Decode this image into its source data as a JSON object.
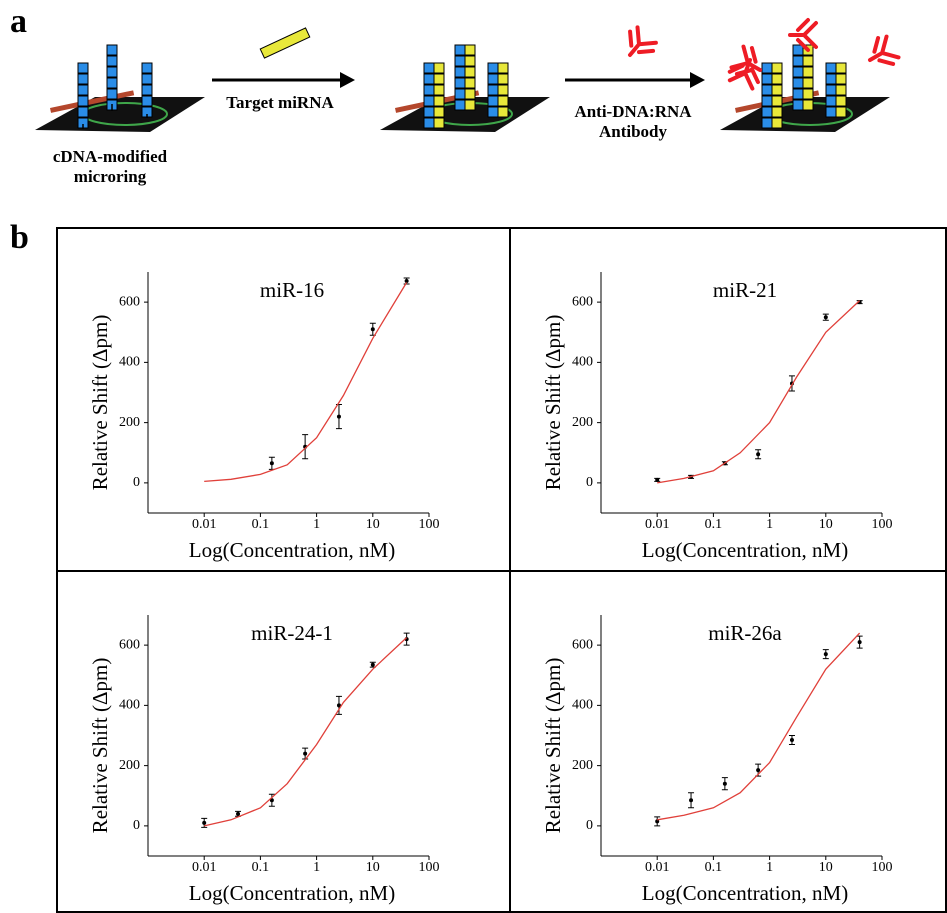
{
  "schematic": {
    "panel_label": "a",
    "texts": [
      "cDNA-modified",
      "microring",
      "Target miRNA",
      "Anti-DNA:RNA",
      "Antibody"
    ]
  },
  "charts_panel_label": "b",
  "chart_data": [
    {
      "type": "scatter",
      "title": "miR-16",
      "xlabel": "Log(Concentration, nM)",
      "ylabel": "Relative Shift (Δpm)",
      "xscale": "log",
      "xlim": [
        0.001,
        100
      ],
      "ylim": [
        -100,
        700
      ],
      "xticks": [
        0.01,
        0.1,
        1,
        10,
        100
      ],
      "yticks": [
        0,
        200,
        400,
        600
      ],
      "series": [
        {
          "color": "#000000",
          "style": "points",
          "x": [
            0.16,
            0.625,
            2.5,
            10,
            40
          ],
          "values": [
            65,
            120,
            220,
            510,
            670
          ],
          "errors": [
            20,
            40,
            40,
            20,
            10
          ]
        },
        {
          "color": "#e0403a",
          "style": "line",
          "x": [
            0.01,
            0.03,
            0.1,
            0.3,
            1,
            3,
            10,
            40
          ],
          "values": [
            5,
            12,
            28,
            60,
            150,
            290,
            480,
            665
          ]
        }
      ]
    },
    {
      "type": "scatter",
      "title": "miR-21",
      "xlabel": "Log(Concentration, nM)",
      "ylabel": "Relative Shift (Δpm)",
      "xscale": "log",
      "xlim": [
        0.001,
        100
      ],
      "ylim": [
        -100,
        700
      ],
      "xticks": [
        0.01,
        0.1,
        1,
        10,
        100
      ],
      "yticks": [
        0,
        200,
        400,
        600
      ],
      "series": [
        {
          "color": "#000000",
          "style": "points",
          "x": [
            0.01,
            0.04,
            0.16,
            0.625,
            2.5,
            10,
            40
          ],
          "values": [
            10,
            20,
            65,
            95,
            330,
            550,
            600
          ],
          "errors": [
            5,
            5,
            5,
            15,
            25,
            10,
            5
          ]
        },
        {
          "color": "#e0403a",
          "style": "line",
          "x": [
            0.01,
            0.03,
            0.1,
            0.3,
            1,
            3,
            10,
            40
          ],
          "values": [
            0,
            15,
            40,
            100,
            200,
            350,
            500,
            605
          ]
        }
      ]
    },
    {
      "type": "scatter",
      "title": "miR-24-1",
      "xlabel": "Log(Concentration, nM)",
      "ylabel": "Relative Shift (Δpm)",
      "xscale": "log",
      "xlim": [
        0.001,
        100
      ],
      "ylim": [
        -100,
        700
      ],
      "xticks": [
        0.01,
        0.1,
        1,
        10,
        100
      ],
      "yticks": [
        0,
        200,
        400,
        600
      ],
      "series": [
        {
          "color": "#000000",
          "style": "points",
          "x": [
            0.01,
            0.04,
            0.16,
            0.625,
            2.5,
            10,
            40
          ],
          "values": [
            10,
            40,
            85,
            240,
            400,
            535,
            620
          ],
          "errors": [
            15,
            8,
            20,
            18,
            30,
            8,
            20
          ]
        },
        {
          "color": "#e0403a",
          "style": "line",
          "x": [
            0.01,
            0.03,
            0.1,
            0.3,
            1,
            3,
            10,
            40
          ],
          "values": [
            0,
            20,
            60,
            140,
            270,
            410,
            520,
            625
          ]
        }
      ]
    },
    {
      "type": "scatter",
      "title": "miR-26a",
      "xlabel": "Log(Concentration, nM)",
      "ylabel": "Relative Shift (Δpm)",
      "xscale": "log",
      "xlim": [
        0.001,
        100
      ],
      "ylim": [
        -100,
        700
      ],
      "xticks": [
        0.01,
        0.1,
        1,
        10,
        100
      ],
      "yticks": [
        0,
        200,
        400,
        600
      ],
      "series": [
        {
          "color": "#000000",
          "style": "points",
          "x": [
            0.01,
            0.04,
            0.16,
            0.625,
            2.5,
            10,
            40
          ],
          "values": [
            15,
            85,
            140,
            185,
            285,
            570,
            610
          ],
          "errors": [
            15,
            25,
            20,
            20,
            15,
            15,
            20
          ]
        },
        {
          "color": "#e0403a",
          "style": "line",
          "x": [
            0.01,
            0.03,
            0.1,
            0.3,
            1,
            3,
            10,
            40
          ],
          "values": [
            20,
            35,
            60,
            110,
            210,
            360,
            520,
            640
          ]
        }
      ]
    }
  ]
}
